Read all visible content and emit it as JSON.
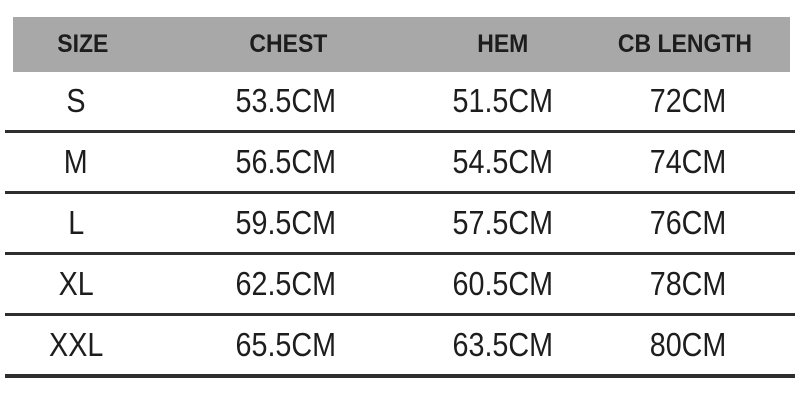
{
  "chart_data": {
    "type": "table",
    "columns": [
      "SIZE",
      "CHEST",
      "HEM",
      "CB LENGTH"
    ],
    "rows": [
      [
        "S",
        "53.5CM",
        "51.5CM",
        "72CM"
      ],
      [
        "M",
        "56.5CM",
        "54.5CM",
        "74CM"
      ],
      [
        "L",
        "59.5CM",
        "57.5CM",
        "76CM"
      ],
      [
        "XL",
        "62.5CM",
        "60.5CM",
        "78CM"
      ],
      [
        "XXL",
        "65.5CM",
        "63.5CM",
        "80CM"
      ]
    ]
  },
  "colors": {
    "background": "#ffffff",
    "header_bg": "#a8a8a8",
    "header_text": "#1d1d1d",
    "body_text": "#1d1d1d",
    "row_line": "#2e2e2e"
  }
}
